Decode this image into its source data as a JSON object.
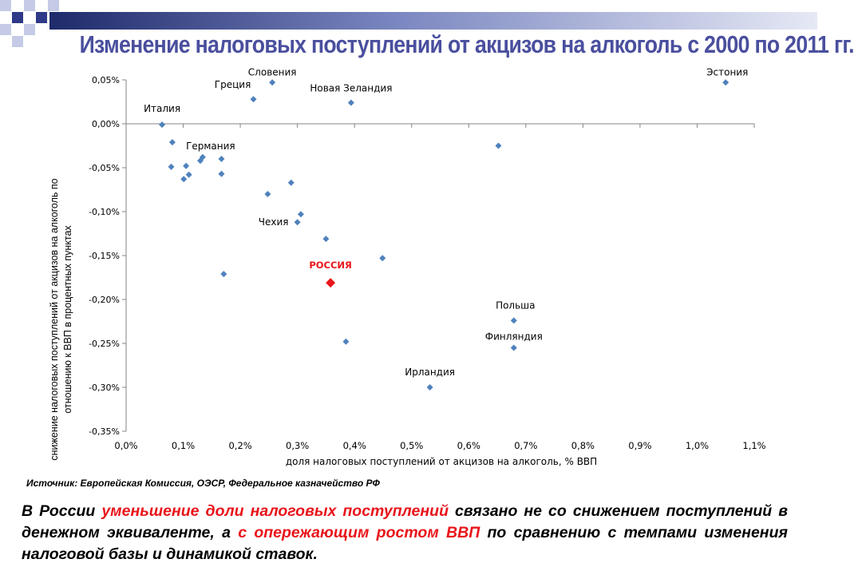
{
  "slide": {
    "title": "Изменение налоговых поступлений от акцизов на алкоголь с 2000 по 2011 гг.",
    "source": "Источник: Европейская Комиссия, ОЭСР, Федеральное казначейство РФ",
    "conclusion": {
      "p1": "В России ",
      "h1": "уменьшение доли налоговых поступлений",
      "p2": " связано не со снижением поступлений в денежном эквиваленте, а ",
      "h2": "с опережающим ростом ВВП",
      "p3": " по сравнению с темпами изменения налоговой базы и динамикой ставок."
    }
  },
  "colors": {
    "point": "#4f81bd",
    "highlight": "#e8151b",
    "axis": "#868686",
    "title": "#4a4f9e",
    "deco_dark": "#2e3a87",
    "deco_light": "#c5cbe6"
  },
  "chart_data": {
    "type": "scatter",
    "xlabel": "доля налоговых поступлений от акцизов на алкоголь, % ВВП",
    "ylabel": "снижение налоговых поступлений от акцизов на алкоголь по отношению к ВВП в процентных пунктах",
    "xlim": [
      0,
      1.1
    ],
    "ylim": [
      -0.35,
      0.05
    ],
    "xticks": [
      0.0,
      0.1,
      0.2,
      0.3,
      0.4,
      0.5,
      0.6,
      0.7,
      0.8,
      0.9,
      1.0,
      1.1
    ],
    "xtick_labels": [
      "0,0%",
      "0,1%",
      "0,2%",
      "0,3%",
      "0,4%",
      "0,5%",
      "0,6%",
      "0,7%",
      "0,8%",
      "0,9%",
      "1,0%",
      "1,1%"
    ],
    "yticks": [
      0.05,
      0.0,
      -0.05,
      -0.1,
      -0.15,
      -0.2,
      -0.25,
      -0.3,
      -0.35
    ],
    "ytick_labels": [
      "0,05%",
      "0,00%",
      "-0,05%",
      "-0,10%",
      "-0,15%",
      "-0,20%",
      "-0,25%",
      "-0,30%",
      "-0,35%"
    ],
    "grid": false,
    "points": [
      {
        "x": 0.256,
        "y": 0.047,
        "label": "Словения",
        "highlight": false
      },
      {
        "x": 0.223,
        "y": 0.028,
        "label": "Греция",
        "highlight": false
      },
      {
        "x": 0.394,
        "y": 0.024,
        "label": "Новая Зеландия",
        "highlight": false
      },
      {
        "x": 1.05,
        "y": 0.047,
        "label": "Эстония",
        "highlight": false
      },
      {
        "x": 0.063,
        "y": -0.001,
        "label": "Италия",
        "highlight": false
      },
      {
        "x": 0.081,
        "y": -0.021,
        "label": "",
        "highlight": false
      },
      {
        "x": 0.079,
        "y": -0.049,
        "label": "",
        "highlight": false
      },
      {
        "x": 0.105,
        "y": -0.048,
        "label": "",
        "highlight": false
      },
      {
        "x": 0.101,
        "y": -0.063,
        "label": "",
        "highlight": false
      },
      {
        "x": 0.11,
        "y": -0.058,
        "label": "",
        "highlight": false
      },
      {
        "x": 0.13,
        "y": -0.042,
        "label": "",
        "highlight": false
      },
      {
        "x": 0.134,
        "y": -0.038,
        "label": "Германия",
        "highlight": false
      },
      {
        "x": 0.167,
        "y": -0.04,
        "label": "",
        "highlight": false
      },
      {
        "x": 0.167,
        "y": -0.057,
        "label": "",
        "highlight": false
      },
      {
        "x": 0.171,
        "y": -0.171,
        "label": "",
        "highlight": false
      },
      {
        "x": 0.248,
        "y": -0.08,
        "label": "",
        "highlight": false
      },
      {
        "x": 0.289,
        "y": -0.067,
        "label": "",
        "highlight": false
      },
      {
        "x": 0.306,
        "y": -0.103,
        "label": "",
        "highlight": false
      },
      {
        "x": 0.3,
        "y": -0.112,
        "label": "Чехия",
        "highlight": false
      },
      {
        "x": 0.35,
        "y": -0.131,
        "label": "",
        "highlight": false
      },
      {
        "x": 0.358,
        "y": -0.181,
        "label": "РОССИЯ",
        "highlight": true
      },
      {
        "x": 0.449,
        "y": -0.153,
        "label": "",
        "highlight": false
      },
      {
        "x": 0.385,
        "y": -0.248,
        "label": "",
        "highlight": false
      },
      {
        "x": 0.532,
        "y": -0.3,
        "label": "Ирландия",
        "highlight": false
      },
      {
        "x": 0.652,
        "y": -0.025,
        "label": "",
        "highlight": false
      },
      {
        "x": 0.679,
        "y": -0.224,
        "label": "Польша",
        "highlight": false
      },
      {
        "x": 0.679,
        "y": -0.255,
        "label": "Финляндия",
        "highlight": false
      }
    ]
  }
}
